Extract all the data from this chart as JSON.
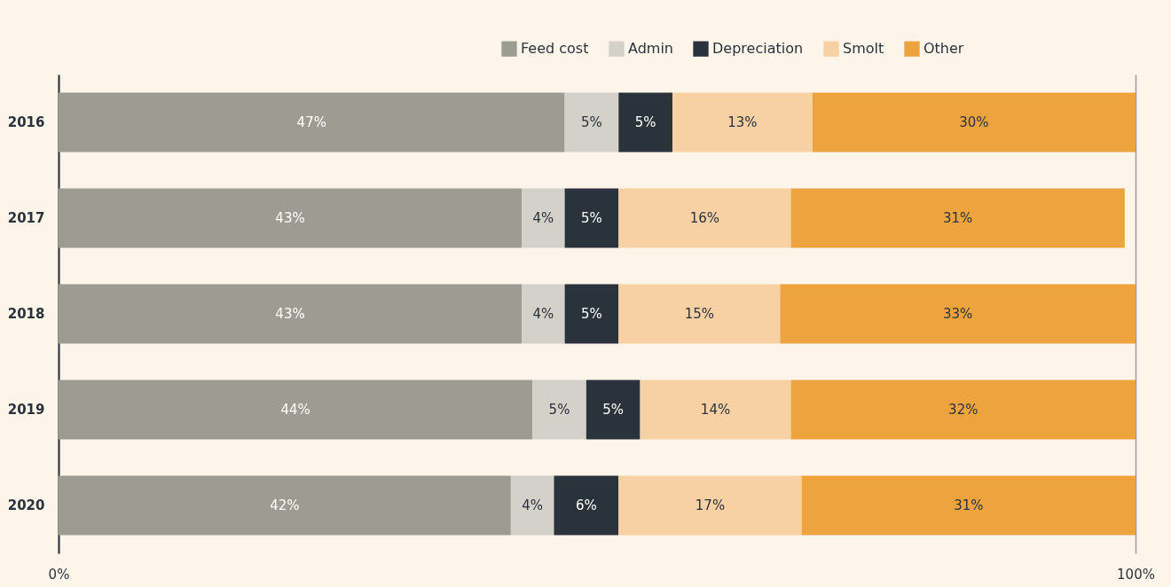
{
  "chart_data": {
    "type": "bar",
    "orientation": "horizontal",
    "stacked": true,
    "categories": [
      "2016",
      "2017",
      "2018",
      "2019",
      "2020"
    ],
    "series": [
      {
        "name": "Feed cost",
        "color": "#9d9c92",
        "values": [
          47,
          43,
          43,
          44,
          42
        ],
        "value_labels": [
          "47%",
          "43%",
          "43%",
          "44%",
          "42%"
        ]
      },
      {
        "name": "Admin",
        "color": "#d3d1ca",
        "values": [
          5,
          4,
          4,
          5,
          4
        ],
        "value_labels": [
          "5%",
          "4%",
          "4%",
          "5%",
          "4%"
        ]
      },
      {
        "name": "Depreciation",
        "color": "#2a333c",
        "values": [
          5,
          5,
          5,
          5,
          6
        ],
        "value_labels": [
          "5%",
          "5%",
          "5%",
          "5%",
          "6%"
        ]
      },
      {
        "name": "Smolt",
        "color": "#f7d1a4",
        "values": [
          13,
          16,
          15,
          14,
          17
        ],
        "value_labels": [
          "13%",
          "16%",
          "15%",
          "14%",
          "17%"
        ]
      },
      {
        "name": "Other",
        "color": "#eda43f",
        "values": [
          30,
          31,
          33,
          32,
          31
        ],
        "value_labels": [
          "30%",
          "31%",
          "33%",
          "32%",
          "31%"
        ]
      }
    ],
    "xlim": [
      0,
      100
    ],
    "xticks": [
      {
        "value": 0,
        "label": "0%"
      },
      {
        "value": 100,
        "label": "100%"
      }
    ],
    "grid": "x",
    "legend": "top right"
  }
}
